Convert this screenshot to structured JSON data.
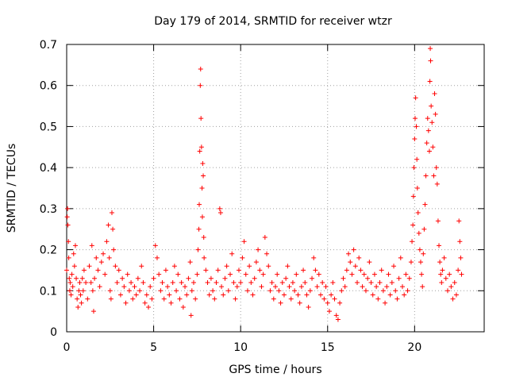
{
  "chart_data": {
    "type": "scatter",
    "title": "Day 179 of 2014, SRMTID for receiver wtzr",
    "xlabel": "GPS time / hours",
    "ylabel": "SRMTID / TECUs",
    "xlim": [
      0,
      24
    ],
    "ylim": [
      0,
      0.7
    ],
    "xticks": [
      0,
      5,
      10,
      15,
      20
    ],
    "xtick_labels": [
      "0",
      "5",
      "10",
      "15",
      "20"
    ],
    "yticks": [
      0,
      0.1,
      0.2,
      0.3,
      0.4,
      0.5,
      0.6,
      0.7
    ],
    "ytick_labels": [
      "0",
      "0.1",
      "0.2",
      "0.3",
      "0.4",
      "0.5",
      "0.6",
      "0.7"
    ],
    "grid": true,
    "marker": "+",
    "color": "#ff0000",
    "series": [
      {
        "name": "SRMTID",
        "points": [
          [
            0.0,
            0.15
          ],
          [
            0.03,
            0.28
          ],
          [
            0.05,
            0.3
          ],
          [
            0.07,
            0.26
          ],
          [
            0.1,
            0.22
          ],
          [
            0.12,
            0.18
          ],
          [
            0.15,
            0.13
          ],
          [
            0.18,
            0.1
          ],
          [
            0.2,
            0.12
          ],
          [
            0.25,
            0.09
          ],
          [
            0.3,
            0.14
          ],
          [
            0.35,
            0.11
          ],
          [
            0.4,
            0.19
          ],
          [
            0.45,
            0.16
          ],
          [
            0.5,
            0.21
          ],
          [
            0.55,
            0.13
          ],
          [
            0.6,
            0.08
          ],
          [
            0.65,
            0.06
          ],
          [
            0.7,
            0.1
          ],
          [
            0.75,
            0.12
          ],
          [
            0.8,
            0.09
          ],
          [
            0.85,
            0.07
          ],
          [
            0.9,
            0.13
          ],
          [
            0.95,
            0.1
          ],
          [
            1.0,
            0.15
          ],
          [
            1.1,
            0.12
          ],
          [
            1.2,
            0.08
          ],
          [
            1.3,
            0.16
          ],
          [
            1.4,
            0.12
          ],
          [
            1.45,
            0.21
          ],
          [
            1.5,
            0.1
          ],
          [
            1.55,
            0.05
          ],
          [
            1.6,
            0.13
          ],
          [
            1.7,
            0.18
          ],
          [
            1.8,
            0.15
          ],
          [
            1.9,
            0.11
          ],
          [
            2.0,
            0.17
          ],
          [
            2.1,
            0.19
          ],
          [
            2.2,
            0.14
          ],
          [
            2.3,
            0.22
          ],
          [
            2.4,
            0.26
          ],
          [
            2.45,
            0.18
          ],
          [
            2.5,
            0.1
          ],
          [
            2.55,
            0.08
          ],
          [
            2.6,
            0.29
          ],
          [
            2.65,
            0.25
          ],
          [
            2.7,
            0.2
          ],
          [
            2.8,
            0.16
          ],
          [
            2.9,
            0.12
          ],
          [
            3.0,
            0.15
          ],
          [
            3.1,
            0.09
          ],
          [
            3.2,
            0.13
          ],
          [
            3.3,
            0.11
          ],
          [
            3.4,
            0.07
          ],
          [
            3.5,
            0.14
          ],
          [
            3.6,
            0.1
          ],
          [
            3.7,
            0.12
          ],
          [
            3.8,
            0.08
          ],
          [
            3.9,
            0.11
          ],
          [
            4.0,
            0.09
          ],
          [
            4.1,
            0.13
          ],
          [
            4.2,
            0.1
          ],
          [
            4.3,
            0.16
          ],
          [
            4.4,
            0.12
          ],
          [
            4.5,
            0.07
          ],
          [
            4.6,
            0.09
          ],
          [
            4.7,
            0.06
          ],
          [
            4.8,
            0.11
          ],
          [
            4.9,
            0.08
          ],
          [
            5.0,
            0.13
          ],
          [
            5.1,
            0.21
          ],
          [
            5.2,
            0.18
          ],
          [
            5.3,
            0.14
          ],
          [
            5.4,
            0.1
          ],
          [
            5.5,
            0.12
          ],
          [
            5.6,
            0.08
          ],
          [
            5.7,
            0.15
          ],
          [
            5.8,
            0.11
          ],
          [
            5.9,
            0.09
          ],
          [
            6.0,
            0.07
          ],
          [
            6.1,
            0.12
          ],
          [
            6.2,
            0.16
          ],
          [
            6.3,
            0.1
          ],
          [
            6.4,
            0.14
          ],
          [
            6.5,
            0.08
          ],
          [
            6.6,
            0.12
          ],
          [
            6.7,
            0.06
          ],
          [
            6.8,
            0.11
          ],
          [
            6.9,
            0.09
          ],
          [
            7.0,
            0.13
          ],
          [
            7.1,
            0.17
          ],
          [
            7.15,
            0.04
          ],
          [
            7.2,
            0.1
          ],
          [
            7.3,
            0.12
          ],
          [
            7.4,
            0.08
          ],
          [
            7.5,
            0.14
          ],
          [
            7.55,
            0.2
          ],
          [
            7.6,
            0.25
          ],
          [
            7.62,
            0.31
          ],
          [
            7.65,
            0.44
          ],
          [
            7.68,
            0.6
          ],
          [
            7.7,
            0.64
          ],
          [
            7.72,
            0.52
          ],
          [
            7.75,
            0.45
          ],
          [
            7.78,
            0.35
          ],
          [
            7.8,
            0.28
          ],
          [
            7.82,
            0.41
          ],
          [
            7.85,
            0.38
          ],
          [
            7.88,
            0.23
          ],
          [
            7.9,
            0.18
          ],
          [
            8.0,
            0.15
          ],
          [
            8.1,
            0.12
          ],
          [
            8.2,
            0.09
          ],
          [
            8.3,
            0.13
          ],
          [
            8.4,
            0.1
          ],
          [
            8.5,
            0.08
          ],
          [
            8.6,
            0.12
          ],
          [
            8.7,
            0.15
          ],
          [
            8.8,
            0.3
          ],
          [
            8.85,
            0.29
          ],
          [
            8.9,
            0.11
          ],
          [
            9.0,
            0.09
          ],
          [
            9.1,
            0.13
          ],
          [
            9.2,
            0.16
          ],
          [
            9.3,
            0.1
          ],
          [
            9.4,
            0.14
          ],
          [
            9.5,
            0.19
          ],
          [
            9.6,
            0.12
          ],
          [
            9.7,
            0.08
          ],
          [
            9.8,
            0.11
          ],
          [
            9.9,
            0.15
          ],
          [
            10.0,
            0.12
          ],
          [
            10.1,
            0.18
          ],
          [
            10.2,
            0.22
          ],
          [
            10.3,
            0.14
          ],
          [
            10.4,
            0.1
          ],
          [
            10.5,
            0.16
          ],
          [
            10.6,
            0.12
          ],
          [
            10.7,
            0.09
          ],
          [
            10.8,
            0.13
          ],
          [
            10.9,
            0.17
          ],
          [
            11.0,
            0.2
          ],
          [
            11.1,
            0.15
          ],
          [
            11.2,
            0.11
          ],
          [
            11.3,
            0.14
          ],
          [
            11.4,
            0.23
          ],
          [
            11.5,
            0.19
          ],
          [
            11.6,
            0.16
          ],
          [
            11.7,
            0.1
          ],
          [
            11.8,
            0.12
          ],
          [
            11.9,
            0.08
          ],
          [
            12.0,
            0.11
          ],
          [
            12.1,
            0.14
          ],
          [
            12.2,
            0.1
          ],
          [
            12.3,
            0.07
          ],
          [
            12.4,
            0.12
          ],
          [
            12.5,
            0.09
          ],
          [
            12.6,
            0.13
          ],
          [
            12.7,
            0.16
          ],
          [
            12.8,
            0.11
          ],
          [
            12.9,
            0.08
          ],
          [
            13.0,
            0.12
          ],
          [
            13.1,
            0.1
          ],
          [
            13.2,
            0.14
          ],
          [
            13.3,
            0.09
          ],
          [
            13.4,
            0.07
          ],
          [
            13.5,
            0.11
          ],
          [
            13.6,
            0.15
          ],
          [
            13.7,
            0.12
          ],
          [
            13.8,
            0.09
          ],
          [
            13.9,
            0.06
          ],
          [
            14.0,
            0.1
          ],
          [
            14.1,
            0.13
          ],
          [
            14.2,
            0.18
          ],
          [
            14.3,
            0.15
          ],
          [
            14.4,
            0.11
          ],
          [
            14.5,
            0.14
          ],
          [
            14.6,
            0.09
          ],
          [
            14.7,
            0.12
          ],
          [
            14.8,
            0.08
          ],
          [
            14.9,
            0.11
          ],
          [
            15.0,
            0.07
          ],
          [
            15.1,
            0.05
          ],
          [
            15.2,
            0.09
          ],
          [
            15.3,
            0.12
          ],
          [
            15.4,
            0.08
          ],
          [
            15.5,
            0.04
          ],
          [
            15.6,
            0.03
          ],
          [
            15.7,
            0.07
          ],
          [
            15.8,
            0.1
          ],
          [
            15.9,
            0.13
          ],
          [
            16.0,
            0.11
          ],
          [
            16.1,
            0.15
          ],
          [
            16.2,
            0.19
          ],
          [
            16.3,
            0.17
          ],
          [
            16.4,
            0.14
          ],
          [
            16.5,
            0.2
          ],
          [
            16.6,
            0.16
          ],
          [
            16.7,
            0.12
          ],
          [
            16.8,
            0.18
          ],
          [
            16.9,
            0.15
          ],
          [
            17.0,
            0.11
          ],
          [
            17.1,
            0.14
          ],
          [
            17.2,
            0.1
          ],
          [
            17.3,
            0.13
          ],
          [
            17.4,
            0.17
          ],
          [
            17.5,
            0.12
          ],
          [
            17.6,
            0.09
          ],
          [
            17.7,
            0.14
          ],
          [
            17.8,
            0.11
          ],
          [
            17.9,
            0.08
          ],
          [
            18.0,
            0.12
          ],
          [
            18.1,
            0.15
          ],
          [
            18.2,
            0.1
          ],
          [
            18.3,
            0.07
          ],
          [
            18.4,
            0.11
          ],
          [
            18.5,
            0.14
          ],
          [
            18.6,
            0.09
          ],
          [
            18.7,
            0.12
          ],
          [
            18.8,
            0.16
          ],
          [
            18.9,
            0.1
          ],
          [
            19.0,
            0.08
          ],
          [
            19.1,
            0.13
          ],
          [
            19.2,
            0.18
          ],
          [
            19.3,
            0.11
          ],
          [
            19.4,
            0.09
          ],
          [
            19.5,
            0.14
          ],
          [
            19.6,
            0.1
          ],
          [
            19.7,
            0.13
          ],
          [
            19.8,
            0.17
          ],
          [
            19.85,
            0.22
          ],
          [
            19.9,
            0.26
          ],
          [
            19.93,
            0.33
          ],
          [
            19.96,
            0.4
          ],
          [
            20.0,
            0.47
          ],
          [
            20.03,
            0.52
          ],
          [
            20.06,
            0.57
          ],
          [
            20.1,
            0.5
          ],
          [
            20.13,
            0.42
          ],
          [
            20.16,
            0.35
          ],
          [
            20.2,
            0.29
          ],
          [
            20.25,
            0.24
          ],
          [
            20.3,
            0.2
          ],
          [
            20.35,
            0.17
          ],
          [
            20.4,
            0.14
          ],
          [
            20.45,
            0.11
          ],
          [
            20.5,
            0.19
          ],
          [
            20.55,
            0.25
          ],
          [
            20.6,
            0.31
          ],
          [
            20.65,
            0.38
          ],
          [
            20.7,
            0.46
          ],
          [
            20.75,
            0.52
          ],
          [
            20.8,
            0.49
          ],
          [
            20.85,
            0.44
          ],
          [
            20.88,
            0.61
          ],
          [
            20.9,
            0.69
          ],
          [
            20.92,
            0.66
          ],
          [
            20.95,
            0.55
          ],
          [
            21.0,
            0.51
          ],
          [
            21.05,
            0.45
          ],
          [
            21.1,
            0.38
          ],
          [
            21.15,
            0.58
          ],
          [
            21.2,
            0.53
          ],
          [
            21.25,
            0.4
          ],
          [
            21.3,
            0.36
          ],
          [
            21.35,
            0.27
          ],
          [
            21.4,
            0.21
          ],
          [
            21.45,
            0.17
          ],
          [
            21.5,
            0.14
          ],
          [
            21.55,
            0.12
          ],
          [
            21.6,
            0.15
          ],
          [
            21.7,
            0.18
          ],
          [
            21.8,
            0.13
          ],
          [
            21.9,
            0.1
          ],
          [
            22.0,
            0.14
          ],
          [
            22.1,
            0.11
          ],
          [
            22.2,
            0.08
          ],
          [
            22.3,
            0.12
          ],
          [
            22.4,
            0.09
          ],
          [
            22.5,
            0.15
          ],
          [
            22.55,
            0.27
          ],
          [
            22.6,
            0.22
          ],
          [
            22.65,
            0.18
          ],
          [
            22.7,
            0.14
          ]
        ]
      }
    ]
  }
}
